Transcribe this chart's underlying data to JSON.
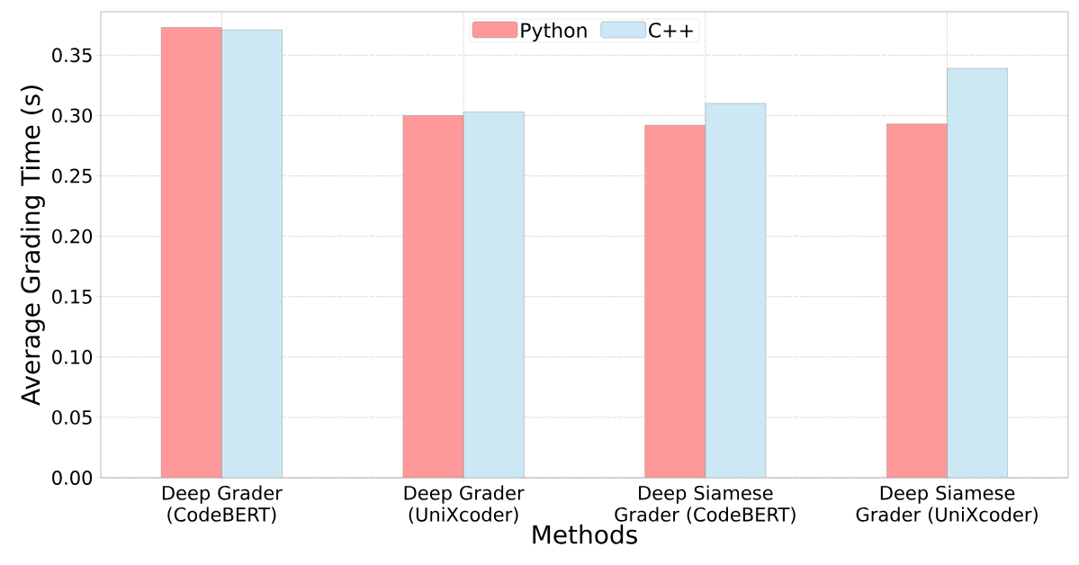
{
  "chart_data": {
    "type": "bar",
    "xlabel": "Methods",
    "ylabel": "Average Grading Time (s)",
    "categories": [
      "Deep Grader (CodeBERT)",
      "Deep Grader (UniXcoder)",
      "Deep Siamese Grader (CodeBERT)",
      "Deep Siamese Grader (UniXcoder)"
    ],
    "series": [
      {
        "name": "Python",
        "color": "#ff9999",
        "values": [
          0.373,
          0.3,
          0.292,
          0.293
        ]
      },
      {
        "name": "C++",
        "color": "#cce8f4",
        "values": [
          0.371,
          0.303,
          0.31,
          0.339
        ]
      }
    ],
    "ylim": [
      0,
      0.386
    ],
    "yticks": [
      {
        "value": 0,
        "label": "0.00"
      },
      {
        "value": 0.05,
        "label": "0.05"
      },
      {
        "value": 0.1,
        "label": "0.10"
      },
      {
        "value": 0.15,
        "label": "0.15"
      },
      {
        "value": 0.2,
        "label": "0.20"
      },
      {
        "value": 0.25,
        "label": "0.25"
      },
      {
        "value": 0.3,
        "label": "0.30"
      },
      {
        "value": 0.35,
        "label": "0.35"
      }
    ],
    "grid": true,
    "legend": "top"
  }
}
